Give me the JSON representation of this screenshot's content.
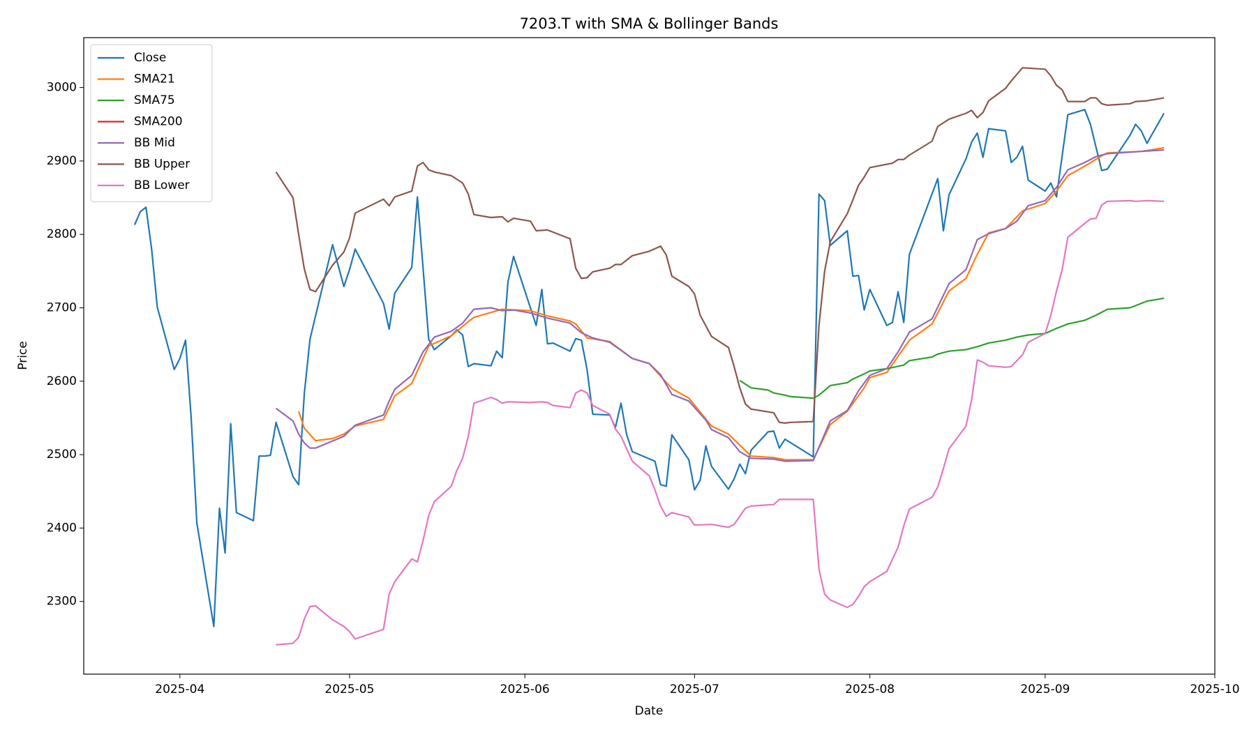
{
  "chart_data": {
    "type": "line",
    "title": "7203.T with SMA & Bollinger Bands",
    "xlabel": "Date",
    "ylabel": "Price",
    "xlim": [
      "2025-03-15",
      "2025-10-01"
    ],
    "xticks": [
      {
        "value": "2025-04-01",
        "label": "2025-04"
      },
      {
        "value": "2025-05-01",
        "label": "2025-05"
      },
      {
        "value": "2025-06-01",
        "label": "2025-06"
      },
      {
        "value": "2025-07-01",
        "label": "2025-07"
      },
      {
        "value": "2025-08-01",
        "label": "2025-08"
      },
      {
        "value": "2025-09-01",
        "label": "2025-09"
      },
      {
        "value": "2025-10-01",
        "label": "2025-10"
      }
    ],
    "ylim": [
      2201,
      3068
    ],
    "yticks": [
      2300,
      2400,
      2500,
      2600,
      2700,
      2800,
      2900,
      3000
    ],
    "grid": false,
    "legend": "upper left",
    "series": [
      {
        "name": "Close",
        "color": "#1f77b4",
        "x": [
          "2025-03-24",
          "2025-03-25",
          "2025-03-26",
          "2025-03-27",
          "2025-03-28",
          "2025-03-31",
          "2025-04-01",
          "2025-04-02",
          "2025-04-03",
          "2025-04-04",
          "2025-04-07",
          "2025-04-08",
          "2025-04-09",
          "2025-04-10",
          "2025-04-11",
          "2025-04-14",
          "2025-04-15",
          "2025-04-16",
          "2025-04-17",
          "2025-04-18",
          "2025-04-21",
          "2025-04-22",
          "2025-04-23",
          "2025-04-24",
          "2025-04-28",
          "2025-04-30",
          "2025-05-01",
          "2025-05-02",
          "2025-05-07",
          "2025-05-08",
          "2025-05-09",
          "2025-05-12",
          "2025-05-13",
          "2025-05-15",
          "2025-05-16",
          "2025-05-19",
          "2025-05-20",
          "2025-05-21",
          "2025-05-22",
          "2025-05-23",
          "2025-05-26",
          "2025-05-27",
          "2025-05-28",
          "2025-05-29",
          "2025-05-30",
          "2025-06-03",
          "2025-06-04",
          "2025-06-05",
          "2025-06-06",
          "2025-06-09",
          "2025-06-10",
          "2025-06-11",
          "2025-06-12",
          "2025-06-13",
          "2025-06-16",
          "2025-06-17",
          "2025-06-18",
          "2025-06-19",
          "2025-06-20",
          "2025-06-24",
          "2025-06-25",
          "2025-06-26",
          "2025-06-27",
          "2025-06-30",
          "2025-07-01",
          "2025-07-02",
          "2025-07-03",
          "2025-07-04",
          "2025-07-07",
          "2025-07-08",
          "2025-07-09",
          "2025-07-10",
          "2025-07-11",
          "2025-07-14",
          "2025-07-15",
          "2025-07-16",
          "2025-07-17",
          "2025-07-22",
          "2025-07-23",
          "2025-07-24",
          "2025-07-25",
          "2025-07-28",
          "2025-07-29",
          "2025-07-30",
          "2025-07-31",
          "2025-08-01",
          "2025-08-04",
          "2025-08-05",
          "2025-08-06",
          "2025-08-07",
          "2025-08-08",
          "2025-08-13",
          "2025-08-14",
          "2025-08-15",
          "2025-08-18",
          "2025-08-19",
          "2025-08-20",
          "2025-08-21",
          "2025-08-22",
          "2025-08-25",
          "2025-08-26",
          "2025-08-27",
          "2025-08-28",
          "2025-08-29",
          "2025-09-01",
          "2025-09-02",
          "2025-09-03",
          "2025-09-05",
          "2025-09-08",
          "2025-09-09",
          "2025-09-11",
          "2025-09-12",
          "2025-09-16",
          "2025-09-17",
          "2025-09-18",
          "2025-09-19",
          "2025-09-22"
        ],
        "values": [
          2813,
          2831,
          2837,
          2780,
          2701,
          2616,
          2631,
          2656,
          2550,
          2407,
          2266,
          2427,
          2366,
          2542,
          2421,
          2410,
          2498,
          2498,
          2499,
          2544,
          2470,
          2459,
          2583,
          2657,
          2786,
          2729,
          2752,
          2780,
          2706,
          2671,
          2720,
          2755,
          2851,
          2657,
          2643,
          2662,
          2670,
          2663,
          2620,
          2624,
          2621,
          2641,
          2632,
          2735,
          2770,
          2676,
          2725,
          2651,
          2652,
          2641,
          2658,
          2656,
          2616,
          2555,
          2554,
          2537,
          2570,
          2527,
          2504,
          2491,
          2459,
          2457,
          2527,
          2493,
          2452,
          2465,
          2512,
          2484,
          2453,
          2467,
          2487,
          2474,
          2506,
          2531,
          2532,
          2509,
          2521,
          2497,
          2855,
          2846,
          2785,
          2805,
          2743,
          2744,
          2697,
          2725,
          2676,
          2680,
          2722,
          2680,
          2773,
          2876,
          2805,
          2854,
          2903,
          2926,
          2938,
          2905,
          2944,
          2941,
          2898,
          2905,
          2920,
          2874,
          2859,
          2870,
          2851,
          2963,
          2970,
          2950,
          2887,
          2889,
          2935,
          2950,
          2941,
          2924,
          2965
        ]
      },
      {
        "name": "SMA21",
        "color": "#ff7f0e",
        "x": [
          "2025-04-22",
          "2025-04-23",
          "2025-04-25",
          "2025-04-28",
          "2025-04-30",
          "2025-05-02",
          "2025-05-07",
          "2025-05-09",
          "2025-05-12",
          "2025-05-15",
          "2025-05-19",
          "2025-05-22",
          "2025-05-23",
          "2025-05-28",
          "2025-06-02",
          "2025-06-05",
          "2025-06-09",
          "2025-06-10",
          "2025-06-12",
          "2025-06-16",
          "2025-06-20",
          "2025-06-23",
          "2025-06-27",
          "2025-06-30",
          "2025-07-04",
          "2025-07-07",
          "2025-07-11",
          "2025-07-15",
          "2025-07-17",
          "2025-07-22",
          "2025-07-25",
          "2025-07-28",
          "2025-07-31",
          "2025-08-01",
          "2025-08-04",
          "2025-08-08",
          "2025-08-12",
          "2025-08-15",
          "2025-08-18",
          "2025-08-20",
          "2025-08-22",
          "2025-08-25",
          "2025-08-28",
          "2025-09-01",
          "2025-09-03",
          "2025-09-05",
          "2025-09-08",
          "2025-09-11",
          "2025-09-12",
          "2025-09-18",
          "2025-09-22"
        ],
        "values": [
          2559,
          2536,
          2519,
          2522,
          2528,
          2539,
          2548,
          2580,
          2597,
          2648,
          2662,
          2681,
          2687,
          2698,
          2696,
          2689,
          2682,
          2678,
          2659,
          2654,
          2631,
          2624,
          2590,
          2577,
          2539,
          2528,
          2498,
          2496,
          2493,
          2493,
          2541,
          2559,
          2591,
          2605,
          2612,
          2656,
          2678,
          2723,
          2740,
          2773,
          2802,
          2808,
          2832,
          2842,
          2859,
          2880,
          2893,
          2907,
          2911,
          2913,
          2918
        ]
      },
      {
        "name": "SMA75",
        "color": "#2ca02c",
        "x": [
          "2025-07-09",
          "2025-07-11",
          "2025-07-14",
          "2025-07-15",
          "2025-07-17",
          "2025-07-18",
          "2025-07-22",
          "2025-07-23",
          "2025-07-25",
          "2025-07-28",
          "2025-07-29",
          "2025-07-31",
          "2025-08-01",
          "2025-08-04",
          "2025-08-07",
          "2025-08-08",
          "2025-08-12",
          "2025-08-13",
          "2025-08-15",
          "2025-08-18",
          "2025-08-20",
          "2025-08-22",
          "2025-08-25",
          "2025-08-27",
          "2025-08-29",
          "2025-09-01",
          "2025-09-03",
          "2025-09-05",
          "2025-09-08",
          "2025-09-10",
          "2025-09-12",
          "2025-09-16",
          "2025-09-17",
          "2025-09-19",
          "2025-09-22"
        ],
        "values": [
          2601,
          2591,
          2588,
          2584,
          2581,
          2579,
          2577,
          2581,
          2594,
          2598,
          2603,
          2610,
          2614,
          2617,
          2622,
          2628,
          2633,
          2637,
          2641,
          2643,
          2647,
          2652,
          2656,
          2660,
          2663,
          2665,
          2672,
          2678,
          2683,
          2690,
          2698,
          2700,
          2703,
          2709,
          2713
        ]
      },
      {
        "name": "SMA200",
        "color": "#d62728",
        "x": [],
        "values": []
      },
      {
        "name": "BB Mid",
        "color": "#9467bd",
        "x": [
          "2025-04-18",
          "2025-04-21",
          "2025-04-22",
          "2025-04-23",
          "2025-04-24",
          "2025-04-25",
          "2025-04-30",
          "2025-05-02",
          "2025-05-07",
          "2025-05-08",
          "2025-05-09",
          "2025-05-12",
          "2025-05-14",
          "2025-05-16",
          "2025-05-19",
          "2025-05-21",
          "2025-05-23",
          "2025-05-26",
          "2025-05-28",
          "2025-05-30",
          "2025-06-02",
          "2025-06-05",
          "2025-06-09",
          "2025-06-11",
          "2025-06-13",
          "2025-06-16",
          "2025-06-20",
          "2025-06-23",
          "2025-06-25",
          "2025-06-27",
          "2025-06-30",
          "2025-07-03",
          "2025-07-04",
          "2025-07-07",
          "2025-07-09",
          "2025-07-11",
          "2025-07-15",
          "2025-07-17",
          "2025-07-22",
          "2025-07-25",
          "2025-07-28",
          "2025-07-30",
          "2025-08-01",
          "2025-08-04",
          "2025-08-06",
          "2025-08-08",
          "2025-08-12",
          "2025-08-15",
          "2025-08-18",
          "2025-08-20",
          "2025-08-22",
          "2025-08-25",
          "2025-08-27",
          "2025-08-29",
          "2025-09-01",
          "2025-09-03",
          "2025-09-05",
          "2025-09-08",
          "2025-09-10",
          "2025-09-12",
          "2025-09-16",
          "2025-09-18",
          "2025-09-22"
        ],
        "values": [
          2563,
          2546,
          2528,
          2516,
          2509,
          2509,
          2525,
          2540,
          2554,
          2573,
          2589,
          2608,
          2640,
          2660,
          2668,
          2679,
          2698,
          2700,
          2696,
          2697,
          2693,
          2686,
          2679,
          2666,
          2659,
          2653,
          2631,
          2624,
          2609,
          2582,
          2573,
          2547,
          2534,
          2523,
          2504,
          2495,
          2494,
          2491,
          2492,
          2546,
          2560,
          2587,
          2608,
          2617,
          2640,
          2667,
          2685,
          2733,
          2752,
          2793,
          2801,
          2808,
          2818,
          2839,
          2846,
          2864,
          2888,
          2898,
          2906,
          2910,
          2912,
          2913,
          2915
        ]
      },
      {
        "name": "BB Upper",
        "color": "#8c564b",
        "x": [
          "2025-04-18",
          "2025-04-21",
          "2025-04-22",
          "2025-04-23",
          "2025-04-24",
          "2025-04-25",
          "2025-04-28",
          "2025-04-30",
          "2025-05-01",
          "2025-05-02",
          "2025-05-07",
          "2025-05-08",
          "2025-05-09",
          "2025-05-12",
          "2025-05-13",
          "2025-05-14",
          "2025-05-15",
          "2025-05-16",
          "2025-05-19",
          "2025-05-21",
          "2025-05-22",
          "2025-05-23",
          "2025-05-26",
          "2025-05-28",
          "2025-05-29",
          "2025-05-30",
          "2025-06-02",
          "2025-06-03",
          "2025-06-05",
          "2025-06-09",
          "2025-06-10",
          "2025-06-11",
          "2025-06-12",
          "2025-06-13",
          "2025-06-16",
          "2025-06-17",
          "2025-06-18",
          "2025-06-20",
          "2025-06-23",
          "2025-06-25",
          "2025-06-26",
          "2025-06-27",
          "2025-06-30",
          "2025-07-01",
          "2025-07-02",
          "2025-07-04",
          "2025-07-07",
          "2025-07-08",
          "2025-07-09",
          "2025-07-10",
          "2025-07-11",
          "2025-07-15",
          "2025-07-16",
          "2025-07-17",
          "2025-07-18",
          "2025-07-22",
          "2025-07-23",
          "2025-07-24",
          "2025-07-25",
          "2025-07-28",
          "2025-07-29",
          "2025-07-30",
          "2025-07-31",
          "2025-08-01",
          "2025-08-05",
          "2025-08-06",
          "2025-08-07",
          "2025-08-08",
          "2025-08-12",
          "2025-08-13",
          "2025-08-15",
          "2025-08-18",
          "2025-08-19",
          "2025-08-20",
          "2025-08-21",
          "2025-08-22",
          "2025-08-25",
          "2025-08-26",
          "2025-08-28",
          "2025-09-01",
          "2025-09-02",
          "2025-09-03",
          "2025-09-04",
          "2025-09-05",
          "2025-09-08",
          "2025-09-09",
          "2025-09-10",
          "2025-09-11",
          "2025-09-12",
          "2025-09-16",
          "2025-09-17",
          "2025-09-19",
          "2025-09-22"
        ],
        "values": [
          2885,
          2850,
          2800,
          2753,
          2725,
          2722,
          2758,
          2776,
          2795,
          2829,
          2848,
          2839,
          2851,
          2859,
          2893,
          2898,
          2888,
          2885,
          2880,
          2870,
          2855,
          2827,
          2823,
          2824,
          2817,
          2822,
          2818,
          2805,
          2806,
          2794,
          2754,
          2740,
          2741,
          2749,
          2754,
          2759,
          2759,
          2771,
          2777,
          2784,
          2772,
          2743,
          2729,
          2719,
          2690,
          2661,
          2646,
          2620,
          2591,
          2569,
          2562,
          2557,
          2544,
          2543,
          2544,
          2545,
          2676,
          2750,
          2790,
          2828,
          2847,
          2867,
          2878,
          2891,
          2897,
          2902,
          2902,
          2908,
          2927,
          2947,
          2957,
          2965,
          2969,
          2959,
          2966,
          2982,
          2999,
          3009,
          3027,
          3025,
          3016,
          3003,
          2997,
          2981,
          2981,
          2986,
          2986,
          2978,
          2976,
          2978,
          2981,
          2982,
          2986
        ]
      },
      {
        "name": "BB Lower",
        "color": "#e377c2",
        "x": [
          "2025-04-18",
          "2025-04-21",
          "2025-04-22",
          "2025-04-23",
          "2025-04-24",
          "2025-04-25",
          "2025-04-28",
          "2025-04-30",
          "2025-05-01",
          "2025-05-02",
          "2025-05-07",
          "2025-05-08",
          "2025-05-09",
          "2025-05-12",
          "2025-05-13",
          "2025-05-14",
          "2025-05-15",
          "2025-05-16",
          "2025-05-19",
          "2025-05-20",
          "2025-05-21",
          "2025-05-22",
          "2025-05-23",
          "2025-05-26",
          "2025-05-27",
          "2025-05-28",
          "2025-05-29",
          "2025-06-02",
          "2025-06-04",
          "2025-06-05",
          "2025-06-06",
          "2025-06-09",
          "2025-06-10",
          "2025-06-11",
          "2025-06-12",
          "2025-06-13",
          "2025-06-16",
          "2025-06-17",
          "2025-06-18",
          "2025-06-20",
          "2025-06-23",
          "2025-06-24",
          "2025-06-25",
          "2025-06-26",
          "2025-06-27",
          "2025-06-30",
          "2025-07-01",
          "2025-07-04",
          "2025-07-07",
          "2025-07-08",
          "2025-07-09",
          "2025-07-10",
          "2025-07-11",
          "2025-07-15",
          "2025-07-16",
          "2025-07-22",
          "2025-07-23",
          "2025-07-24",
          "2025-07-25",
          "2025-07-28",
          "2025-07-29",
          "2025-07-30",
          "2025-07-31",
          "2025-08-01",
          "2025-08-04",
          "2025-08-06",
          "2025-08-07",
          "2025-08-08",
          "2025-08-12",
          "2025-08-13",
          "2025-08-14",
          "2025-08-15",
          "2025-08-18",
          "2025-08-19",
          "2025-08-20",
          "2025-08-21",
          "2025-08-22",
          "2025-08-25",
          "2025-08-26",
          "2025-08-28",
          "2025-08-29",
          "2025-09-01",
          "2025-09-02",
          "2025-09-03",
          "2025-09-04",
          "2025-09-05",
          "2025-09-08",
          "2025-09-09",
          "2025-09-10",
          "2025-09-11",
          "2025-09-12",
          "2025-09-16",
          "2025-09-17",
          "2025-09-19",
          "2025-09-22"
        ],
        "values": [
          2241,
          2243,
          2251,
          2276,
          2293,
          2294,
          2275,
          2266,
          2259,
          2249,
          2262,
          2310,
          2327,
          2358,
          2354,
          2383,
          2417,
          2436,
          2457,
          2479,
          2495,
          2525,
          2570,
          2578,
          2575,
          2570,
          2572,
          2571,
          2572,
          2571,
          2567,
          2564,
          2584,
          2588,
          2584,
          2567,
          2555,
          2535,
          2525,
          2491,
          2471,
          2452,
          2430,
          2416,
          2421,
          2415,
          2404,
          2405,
          2401,
          2405,
          2416,
          2427,
          2430,
          2432,
          2439,
          2439,
          2344,
          2310,
          2302,
          2292,
          2296,
          2307,
          2320,
          2327,
          2341,
          2374,
          2403,
          2426,
          2442,
          2456,
          2481,
          2508,
          2539,
          2575,
          2629,
          2626,
          2621,
          2619,
          2620,
          2636,
          2653,
          2665,
          2690,
          2723,
          2752,
          2796,
          2815,
          2821,
          2822,
          2840,
          2845,
          2846,
          2845,
          2846,
          2845
        ]
      }
    ]
  }
}
